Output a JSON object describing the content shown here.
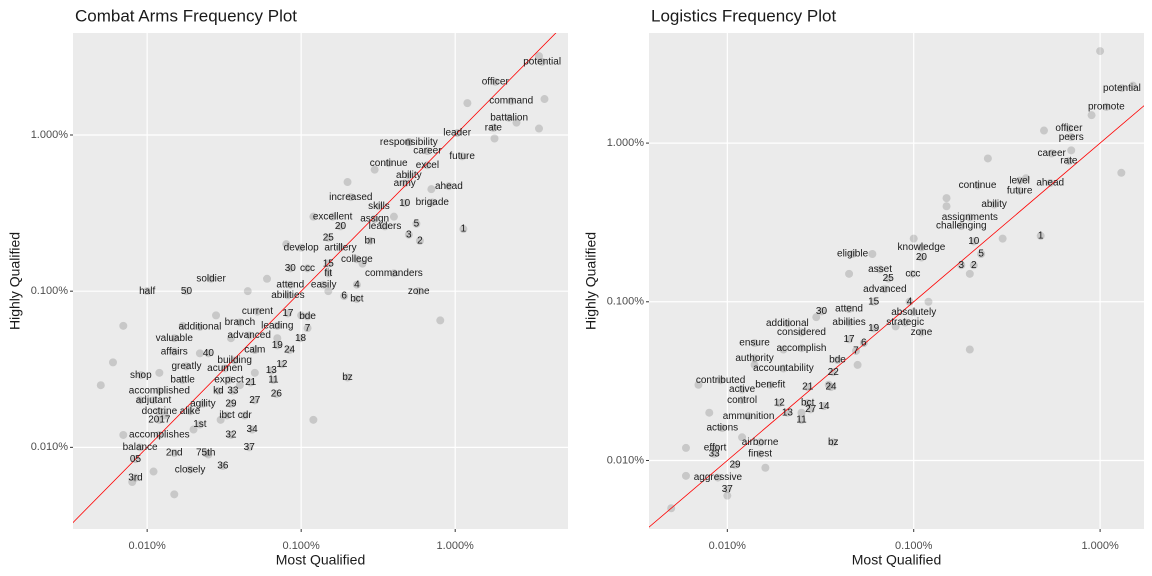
{
  "chart_data": [
    {
      "type": "scatter",
      "title": "Combat Arms Frequency Plot",
      "x_label": "Most Qualified",
      "y_label": "Highly Qualified",
      "log_x": true,
      "log_y": true,
      "grid": true,
      "identity_line_color": "#ff0000",
      "point_color": "#000000",
      "xlim": [
        0.0033,
        5.4
      ],
      "ylim": [
        0.003,
        4.5
      ],
      "xticks": [
        {
          "value": 0.01,
          "label": "0.010%"
        },
        {
          "value": 0.1,
          "label": "0.100%"
        },
        {
          "value": 1,
          "label": "1.000%"
        }
      ],
      "yticks": [
        {
          "value": 0.01,
          "label": "0.010%"
        },
        {
          "value": 0.1,
          "label": "0.100%"
        },
        {
          "value": 1,
          "label": "1.000%"
        }
      ],
      "points": {
        "x": [
          0.005,
          0.006,
          0.007,
          0.008,
          0.009,
          0.011,
          0.012,
          0.013,
          0.015,
          0.017,
          0.02,
          0.022,
          0.025,
          0.028,
          0.03,
          0.035,
          0.04,
          0.045,
          0.05,
          0.06,
          0.07,
          0.08,
          0.1,
          0.12,
          0.15,
          0.2,
          0.25,
          0.3,
          0.4,
          0.5,
          0.7,
          0.8,
          1.2,
          1.8,
          2.5,
          3.5,
          3.8,
          3.5,
          0.007,
          0.12
        ],
        "y": [
          0.025,
          0.035,
          0.012,
          0.006,
          0.02,
          0.007,
          0.03,
          0.016,
          0.005,
          0.06,
          0.013,
          0.04,
          0.009,
          0.07,
          0.015,
          0.05,
          0.025,
          0.1,
          0.03,
          0.12,
          0.05,
          0.2,
          0.07,
          0.3,
          0.1,
          0.5,
          0.15,
          0.6,
          0.3,
          0.9,
          0.45,
          0.065,
          1.6,
          0.95,
          1.2,
          1.1,
          1.7,
          3.2,
          0.06,
          0.015
        ]
      },
      "labeled_points": {
        "labels": [
          "potential",
          "officer",
          "command",
          "battalion",
          "rate",
          "leader",
          "responsibility",
          "career",
          "future",
          "continue",
          "excel",
          "ability",
          "army",
          "ahead",
          "increased",
          "brigade",
          "10",
          "skills",
          "excellent",
          "assign",
          "1",
          "20",
          "leaders",
          "5",
          "25",
          "3",
          "2",
          "bn",
          "develop",
          "artillery",
          "college",
          "15",
          "30",
          "ccc",
          "fit",
          "commanders",
          "soldier",
          "attend",
          "easily",
          "4",
          "half",
          "50",
          "abilities",
          "6",
          "bct",
          "zone",
          "current",
          "17",
          "bde",
          "branch",
          "leading",
          "7",
          "additional",
          "valuable",
          "advanced",
          "18",
          "19",
          "24",
          "affairs",
          "40",
          "calm",
          "building",
          "acumen",
          "greatly",
          "13",
          "12",
          "shop",
          "battle",
          "expect",
          "21",
          "11",
          "bz",
          "accomplished",
          "kd",
          "33",
          "26",
          "adjutant",
          "agility",
          "29",
          "27",
          "doctrine",
          "alike",
          "ibct",
          "cdr",
          "2017",
          "1st",
          "34",
          "accomplishes",
          "32",
          "37",
          "balance",
          "2nd",
          "75th",
          "05",
          "36",
          "closely",
          "3rd"
        ],
        "x": [
          3.67,
          1.82,
          2.31,
          2.24,
          1.77,
          1.03,
          0.5,
          0.66,
          1.11,
          0.37,
          0.66,
          0.5,
          0.47,
          0.91,
          0.21,
          0.71,
          0.47,
          0.32,
          0.16,
          0.3,
          1.13,
          0.18,
          0.35,
          0.56,
          0.15,
          0.5,
          0.59,
          0.28,
          0.1,
          0.18,
          0.23,
          0.15,
          0.085,
          0.11,
          0.15,
          0.4,
          0.026,
          0.085,
          0.14,
          0.23,
          0.01,
          0.018,
          0.082,
          0.19,
          0.23,
          0.58,
          0.052,
          0.082,
          0.11,
          0.04,
          0.07,
          0.11,
          0.022,
          0.015,
          0.046,
          0.099,
          0.07,
          0.084,
          0.015,
          0.025,
          0.05,
          0.037,
          0.032,
          0.018,
          0.064,
          0.075,
          0.0091,
          0.017,
          0.034,
          0.047,
          0.066,
          0.2,
          0.012,
          0.029,
          0.036,
          0.069,
          0.011,
          0.023,
          0.035,
          0.05,
          0.012,
          0.019,
          0.033,
          0.043,
          0.012,
          0.022,
          0.048,
          0.012,
          0.035,
          0.046,
          0.009,
          0.015,
          0.024,
          0.0084,
          0.031,
          0.019,
          0.0084
        ],
        "y": [
          2.94,
          2.19,
          1.65,
          1.29,
          1.11,
          1.03,
          0.9,
          0.79,
          0.73,
          0.66,
          0.64,
          0.55,
          0.49,
          0.47,
          0.4,
          0.37,
          0.366,
          0.35,
          0.3,
          0.29,
          0.25,
          0.26,
          0.26,
          0.27,
          0.22,
          0.23,
          0.21,
          0.21,
          0.19,
          0.19,
          0.16,
          0.15,
          0.14,
          0.14,
          0.13,
          0.13,
          0.12,
          0.11,
          0.11,
          0.11,
          0.1,
          0.1,
          0.094,
          0.093,
          0.089,
          0.1,
          0.074,
          0.072,
          0.069,
          0.063,
          0.06,
          0.058,
          0.059,
          0.05,
          0.052,
          0.05,
          0.045,
          0.042,
          0.041,
          0.04,
          0.042,
          0.036,
          0.032,
          0.033,
          0.031,
          0.034,
          0.029,
          0.027,
          0.027,
          0.026,
          0.027,
          0.028,
          0.023,
          0.023,
          0.023,
          0.022,
          0.02,
          0.019,
          0.019,
          0.02,
          0.017,
          0.017,
          0.016,
          0.016,
          0.015,
          0.014,
          0.013,
          0.012,
          0.012,
          0.01,
          0.01,
          0.0092,
          0.0092,
          0.0084,
          0.0076,
          0.0072,
          0.0064
        ]
      }
    },
    {
      "type": "scatter",
      "title": "Logistics Frequency Plot",
      "x_label": "Most Qualified",
      "y_label": "Highly Qualified",
      "log_x": true,
      "log_y": true,
      "grid": true,
      "identity_line_color": "#ff0000",
      "point_color": "#000000",
      "xlim": [
        0.0038,
        1.72
      ],
      "ylim": [
        0.0037,
        4.94
      ],
      "xticks": [
        {
          "value": 0.01,
          "label": "0.010%"
        },
        {
          "value": 0.1,
          "label": "0.100%"
        },
        {
          "value": 1,
          "label": "1.000%"
        }
      ],
      "yticks": [
        {
          "value": 0.01,
          "label": "0.010%"
        },
        {
          "value": 0.1,
          "label": "0.100%"
        },
        {
          "value": 1,
          "label": "1.000%"
        }
      ],
      "points": {
        "x": [
          0.006,
          0.007,
          0.008,
          0.006,
          0.01,
          0.012,
          0.014,
          0.016,
          0.02,
          0.025,
          0.03,
          0.035,
          0.045,
          0.05,
          0.06,
          0.08,
          0.1,
          0.12,
          0.15,
          0.2,
          0.25,
          0.3,
          0.4,
          0.5,
          0.7,
          0.9,
          1.0,
          1.3,
          1.5,
          0.005,
          0.2,
          0.15
        ],
        "y": [
          0.012,
          0.03,
          0.02,
          0.008,
          0.006,
          0.014,
          0.04,
          0.009,
          0.05,
          0.02,
          0.08,
          0.03,
          0.15,
          0.04,
          0.2,
          0.07,
          0.25,
          0.1,
          0.4,
          0.15,
          0.8,
          0.25,
          0.6,
          1.2,
          0.9,
          1.5,
          3.8,
          0.65,
          2.3,
          0.005,
          0.05,
          0.45
        ]
      },
      "labeled_points": {
        "labels": [
          "potential",
          "promote",
          "officer",
          "peers",
          "career",
          "rate",
          "continue",
          "level",
          "ahead",
          "future",
          "ability",
          "assignments",
          "challenging",
          "knowledge",
          "1",
          "10",
          "20",
          "eligible",
          "5",
          "3",
          "2",
          "asset",
          "25",
          "ccc",
          "advanced",
          "15",
          "4",
          "attend",
          "30",
          "absolutely",
          "17",
          "abilities",
          "strategic",
          "19",
          "additional",
          "considered",
          "zone",
          "ensure",
          "6",
          "accomplish",
          "7",
          "authority",
          "bde",
          "accountability",
          "22",
          "contributed",
          "active",
          "benefit",
          "21",
          "24",
          "control",
          "12",
          "bct",
          "14",
          "27",
          "13",
          "ammunition",
          "11",
          "actions",
          "airborne",
          "bz",
          "effort",
          "33",
          "finest",
          "29",
          "aggressive",
          "37"
        ],
        "x": [
          1.31,
          1.08,
          0.68,
          0.7,
          0.55,
          0.68,
          0.22,
          0.37,
          0.54,
          0.37,
          0.27,
          0.2,
          0.18,
          0.11,
          0.48,
          0.21,
          0.11,
          0.047,
          0.23,
          0.18,
          0.21,
          0.066,
          0.073,
          0.099,
          0.07,
          0.061,
          0.095,
          0.045,
          0.032,
          0.1,
          0.045,
          0.045,
          0.09,
          0.061,
          0.021,
          0.025,
          0.11,
          0.014,
          0.054,
          0.025,
          0.049,
          0.014,
          0.039,
          0.02,
          0.037,
          0.0092,
          0.012,
          0.017,
          0.027,
          0.036,
          0.012,
          0.019,
          0.027,
          0.033,
          0.028,
          0.021,
          0.013,
          0.025,
          0.0094,
          0.015,
          0.037,
          0.0086,
          0.0085,
          0.015,
          0.011,
          0.0089,
          0.01
        ],
        "y": [
          2.22,
          1.69,
          1.24,
          1.09,
          0.86,
          0.77,
          0.54,
          0.58,
          0.56,
          0.5,
          0.41,
          0.34,
          0.3,
          0.22,
          0.26,
          0.24,
          0.19,
          0.2,
          0.2,
          0.17,
          0.17,
          0.16,
          0.14,
          0.15,
          0.12,
          0.1,
          0.1,
          0.09,
          0.087,
          0.086,
          0.058,
          0.074,
          0.074,
          0.068,
          0.073,
          0.064,
          0.064,
          0.055,
          0.055,
          0.051,
          0.049,
          0.044,
          0.043,
          0.038,
          0.036,
          0.032,
          0.028,
          0.03,
          0.029,
          0.029,
          0.024,
          0.023,
          0.023,
          0.022,
          0.021,
          0.02,
          0.019,
          0.018,
          0.016,
          0.013,
          0.013,
          0.012,
          0.011,
          0.011,
          0.0094,
          0.0078,
          0.0066
        ]
      }
    }
  ]
}
